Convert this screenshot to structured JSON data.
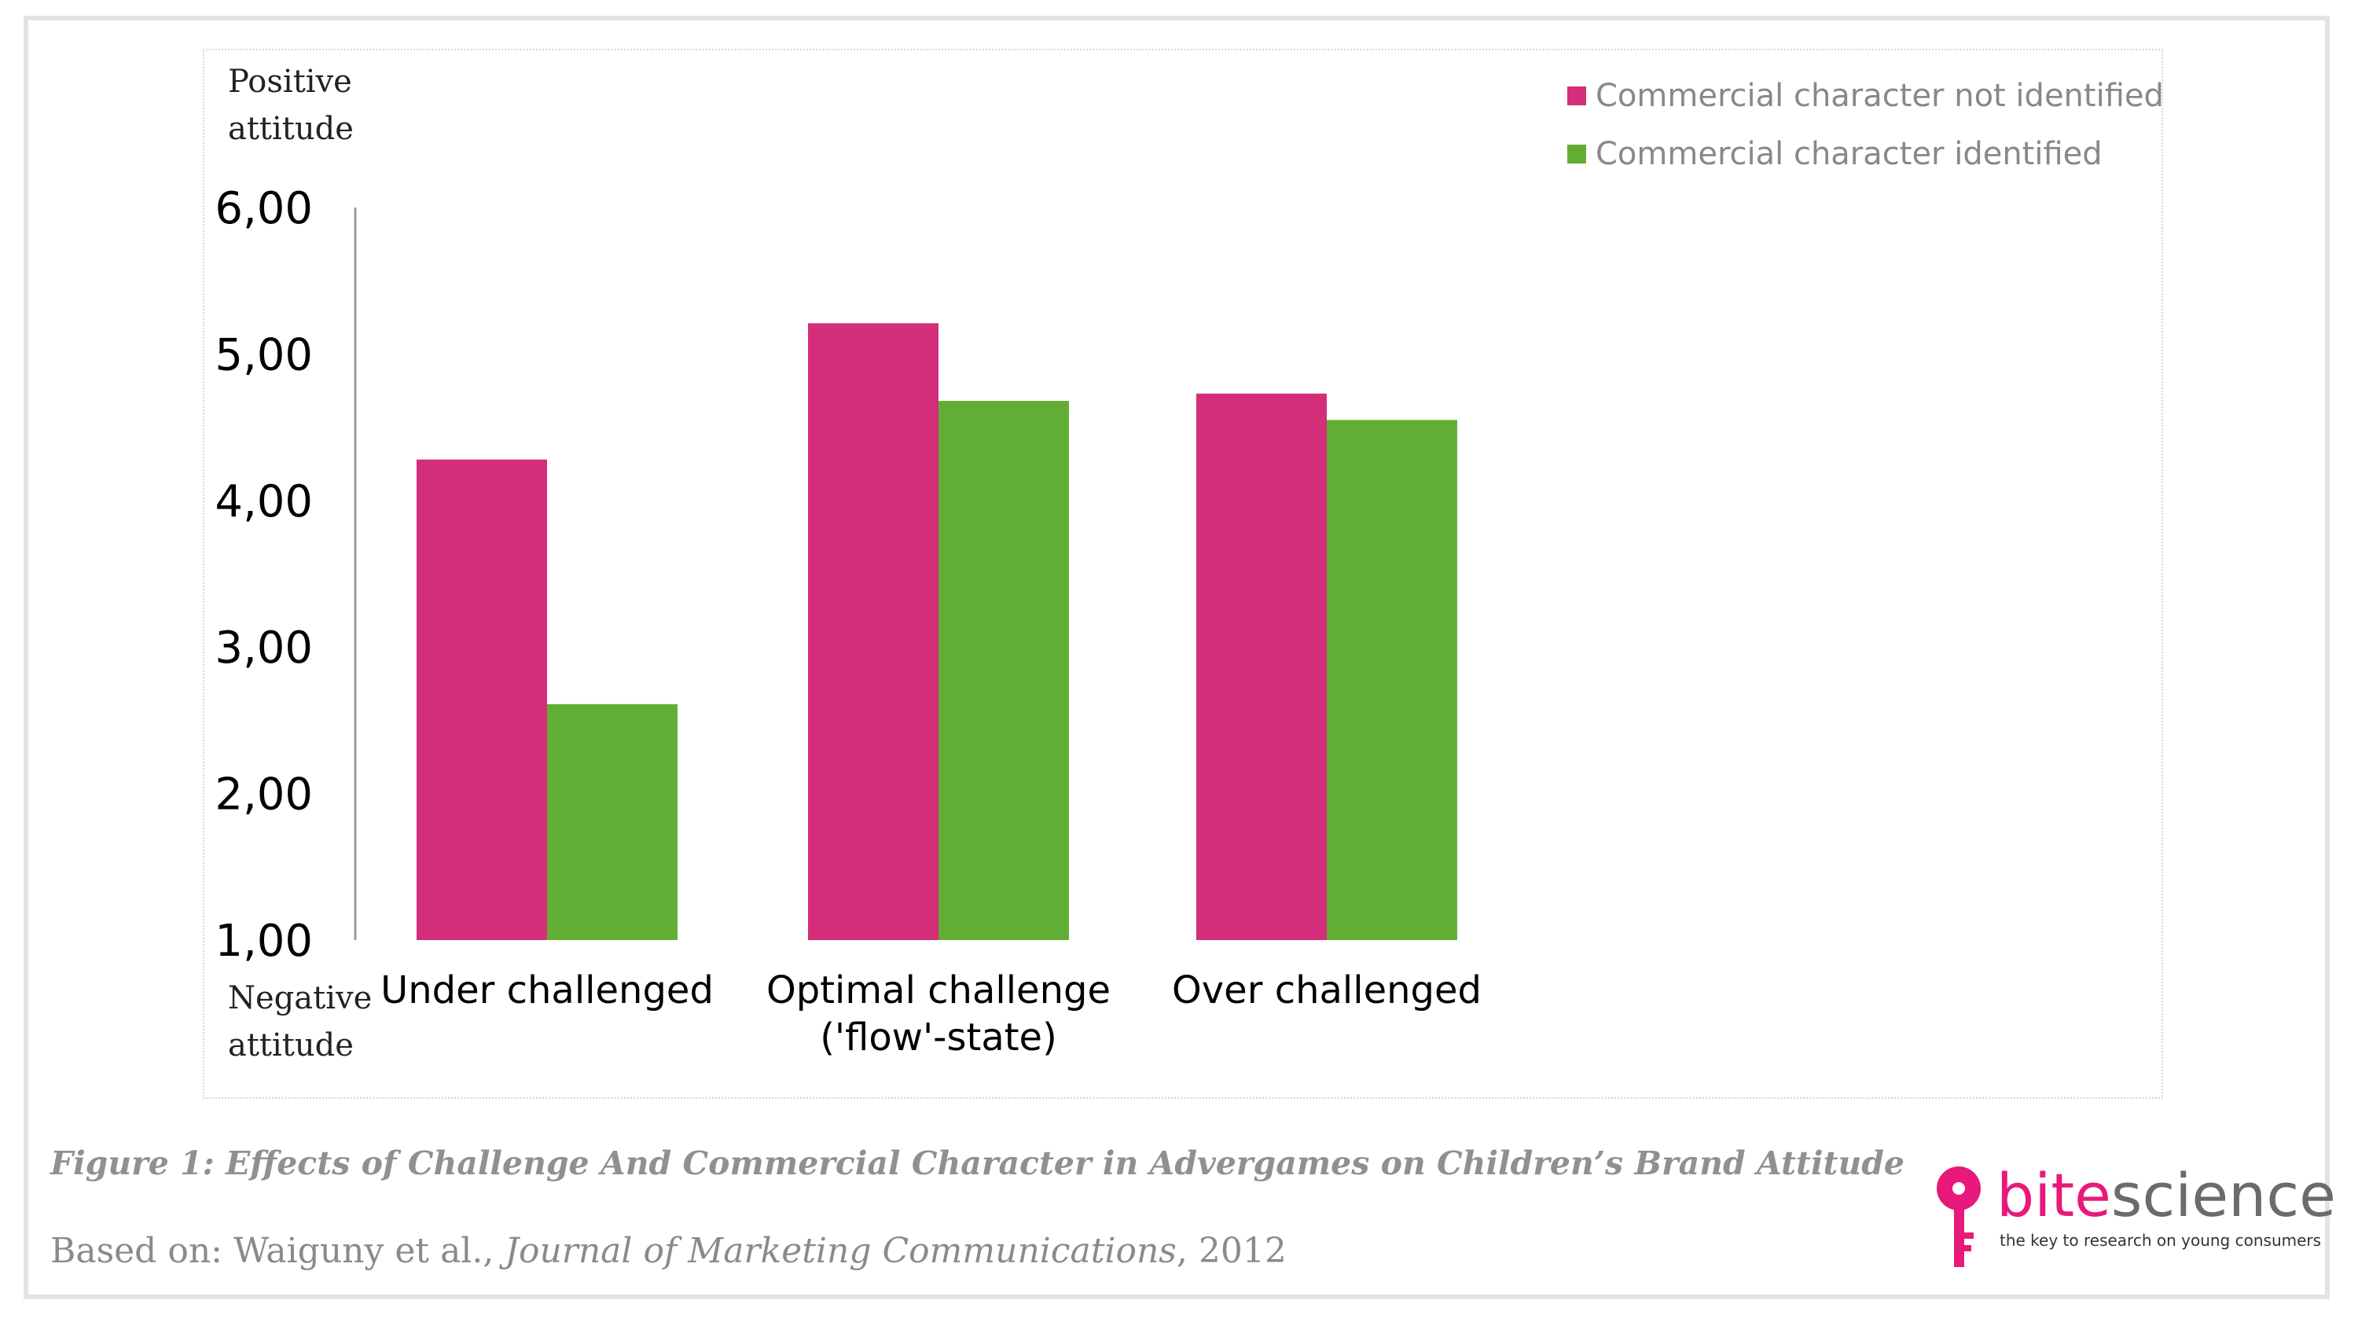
{
  "chart_data": {
    "type": "bar",
    "categories": [
      [
        "Under challenged"
      ],
      [
        "Optimal challenge",
        "('flow'-state)"
      ],
      [
        "Over challenged"
      ]
    ],
    "series": [
      {
        "name": "Commercial character not identified",
        "color": "#d42d7a",
        "values": [
          4.28,
          5.21,
          4.73
        ]
      },
      {
        "name": "Commercial character identified",
        "color": "#62ae35",
        "values": [
          2.61,
          4.68,
          4.55
        ]
      }
    ],
    "ylim": [
      1,
      6
    ],
    "yticks": [
      "1,00",
      "2,00",
      "3,00",
      "4,00",
      "5,00",
      "6,00"
    ],
    "ylabel_top": [
      "Positive",
      "attitude"
    ],
    "ylabel_bottom": [
      "Negative",
      "attitude"
    ],
    "grid": false,
    "legend_position": "top-right"
  },
  "caption": "Figure 1: Effects of Challenge And Commercial Character in Advergames on Children’s Brand Attitude",
  "source": {
    "prefix": "Based on: Waiguny et al., ",
    "journal": "Journal of Marketing Communications",
    "suffix": ", 2012"
  },
  "logo": {
    "part1": "bite",
    "part2": "science",
    "tagline": "the key to research on young consumers",
    "icon": "key-icon",
    "color": "#e8197a"
  }
}
